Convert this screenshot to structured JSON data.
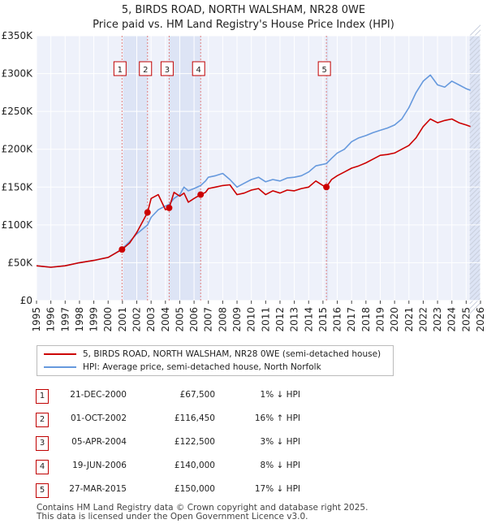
{
  "title_line1": "5, BIRDS ROAD, NORTH WALSHAM, NR28 0WE",
  "title_line2": "Price paid vs. HM Land Registry's House Price Index (HPI)",
  "chart_data": {
    "type": "line",
    "title": "5, BIRDS ROAD, NORTH WALSHAM, NR28 0WE — Price paid vs. HM Land Registry's House Price Index (HPI)",
    "xlabel": "",
    "ylabel": "",
    "xlim": [
      1995,
      2026
    ],
    "ylim": [
      0,
      350000
    ],
    "x_ticks": [
      "1995",
      "1996",
      "1997",
      "1998",
      "1999",
      "2000",
      "2001",
      "2002",
      "2003",
      "2004",
      "2005",
      "2006",
      "2007",
      "2008",
      "2009",
      "2010",
      "2011",
      "2012",
      "2013",
      "2014",
      "2015",
      "2016",
      "2017",
      "2018",
      "2019",
      "2020",
      "2021",
      "2022",
      "2023",
      "2024",
      "2025",
      "2026"
    ],
    "y_ticks": [
      {
        "value": 0,
        "label": "£0"
      },
      {
        "value": 50000,
        "label": "£50K"
      },
      {
        "value": 100000,
        "label": "£100K"
      },
      {
        "value": 150000,
        "label": "£150K"
      },
      {
        "value": 200000,
        "label": "£200K"
      },
      {
        "value": 250000,
        "label": "£250K"
      },
      {
        "value": 300000,
        "label": "£300K"
      },
      {
        "value": 350000,
        "label": "£350K"
      }
    ],
    "grid": true,
    "series": [
      {
        "name": "5, BIRDS ROAD, NORTH WALSHAM, NR28 0WE (semi-detached house)",
        "color": "#cc0000",
        "x": [
          1995.0,
          1996.0,
          1997.0,
          1998.0,
          1999.0,
          2000.0,
          2000.97,
          2001.5,
          2002.0,
          2002.75,
          2003.0,
          2003.5,
          2004.0,
          2004.26,
          2004.6,
          2005.0,
          2005.3,
          2005.6,
          2006.0,
          2006.46,
          2006.8,
          2007.0,
          2007.5,
          2008.0,
          2008.5,
          2009.0,
          2009.5,
          2010.0,
          2010.5,
          2011.0,
          2011.5,
          2012.0,
          2012.5,
          2013.0,
          2013.5,
          2014.0,
          2014.5,
          2015.0,
          2015.24,
          2015.6,
          2016.0,
          2016.5,
          2017.0,
          2017.5,
          2018.0,
          2018.5,
          2019.0,
          2019.5,
          2020.0,
          2020.5,
          2021.0,
          2021.5,
          2022.0,
          2022.5,
          2023.0,
          2023.5,
          2024.0,
          2024.5,
          2025.0,
          2025.3
        ],
        "y": [
          46000,
          44000,
          46000,
          50000,
          53000,
          57000,
          67500,
          76000,
          90000,
          116450,
          135000,
          140000,
          120000,
          122500,
          143000,
          138000,
          142000,
          130000,
          135000,
          140000,
          143000,
          148000,
          150000,
          152000,
          153000,
          140000,
          142000,
          146000,
          148000,
          140000,
          145000,
          142000,
          146000,
          145000,
          148000,
          150000,
          158000,
          152000,
          150000,
          160000,
          165000,
          170000,
          175000,
          178000,
          182000,
          187000,
          192000,
          193000,
          195000,
          200000,
          205000,
          215000,
          230000,
          240000,
          235000,
          238000,
          240000,
          235000,
          232000,
          230000
        ]
      },
      {
        "name": "HPI: Average price, semi-detached house, North Norfolk",
        "color": "#6699dd",
        "x": [
          1995.0,
          1996.0,
          1997.0,
          1998.0,
          1999.0,
          2000.0,
          2000.97,
          2001.5,
          2002.0,
          2002.75,
          2003.0,
          2003.5,
          2004.0,
          2004.26,
          2004.6,
          2005.0,
          2005.3,
          2005.6,
          2006.0,
          2006.46,
          2006.8,
          2007.0,
          2007.5,
          2008.0,
          2008.5,
          2009.0,
          2009.5,
          2010.0,
          2010.5,
          2011.0,
          2011.5,
          2012.0,
          2012.5,
          2013.0,
          2013.5,
          2014.0,
          2014.5,
          2015.0,
          2015.24,
          2015.6,
          2016.0,
          2016.5,
          2017.0,
          2017.5,
          2018.0,
          2018.5,
          2019.0,
          2019.5,
          2020.0,
          2020.5,
          2021.0,
          2021.5,
          2022.0,
          2022.5,
          2023.0,
          2023.5,
          2024.0,
          2024.5,
          2025.0,
          2025.3
        ],
        "y": [
          46000,
          44000,
          46000,
          50000,
          53000,
          57000,
          68000,
          78000,
          88000,
          100000,
          110000,
          120000,
          125000,
          127000,
          135000,
          140000,
          150000,
          145000,
          148000,
          152000,
          158000,
          163000,
          165000,
          168000,
          160000,
          150000,
          155000,
          160000,
          163000,
          157000,
          160000,
          158000,
          162000,
          163000,
          165000,
          170000,
          178000,
          180000,
          181000,
          188000,
          195000,
          200000,
          210000,
          215000,
          218000,
          222000,
          225000,
          228000,
          232000,
          240000,
          255000,
          275000,
          290000,
          298000,
          285000,
          282000,
          290000,
          285000,
          280000,
          278000
        ]
      }
    ],
    "sales": [
      {
        "label": "1",
        "x": 2000.97,
        "y": 67500
      },
      {
        "label": "2",
        "x": 2002.75,
        "y": 116450
      },
      {
        "label": "3",
        "x": 2004.26,
        "y": 122500
      },
      {
        "label": "4",
        "x": 2006.46,
        "y": 140000
      },
      {
        "label": "5",
        "x": 2015.24,
        "y": 150000
      }
    ],
    "shaded_ranges": [
      [
        2000.97,
        2002.75
      ],
      [
        2004.26,
        2006.46
      ],
      [
        2015.24,
        2015.36
      ],
      [
        2025.25,
        2026.0
      ]
    ],
    "legend_position": "below"
  },
  "legend": {
    "property": "5, BIRDS ROAD, NORTH WALSHAM, NR28 0WE (semi-detached house)",
    "hpi": "HPI: Average price, semi-detached house, North Norfolk"
  },
  "sales_table": [
    {
      "num": "1",
      "date": "21-DEC-2000",
      "price": "£67,500",
      "hpi": "1% ↓ HPI"
    },
    {
      "num": "2",
      "date": "01-OCT-2002",
      "price": "£116,450",
      "hpi": "16% ↑ HPI"
    },
    {
      "num": "3",
      "date": "05-APR-2004",
      "price": "£122,500",
      "hpi": "3% ↓ HPI"
    },
    {
      "num": "4",
      "date": "19-JUN-2006",
      "price": "£140,000",
      "hpi": "8% ↓ HPI"
    },
    {
      "num": "5",
      "date": "27-MAR-2015",
      "price": "£150,000",
      "hpi": "17% ↓ HPI"
    }
  ],
  "footer_line1": "Contains HM Land Registry data © Crown copyright and database right 2025.",
  "footer_line2": "This data is licensed under the Open Government Licence v3.0."
}
